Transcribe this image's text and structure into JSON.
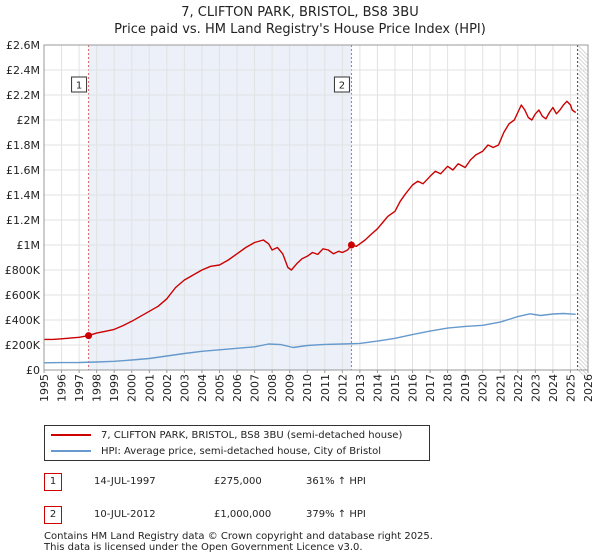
{
  "chart_data": {
    "type": "line",
    "title": "7, CLIFTON PARK, BRISTOL, BS8 3BU",
    "subtitle": "Price paid vs. HM Land Registry's House Price Index (HPI)",
    "xlabel": "",
    "ylabel": "",
    "xlim": [
      1995,
      2026
    ],
    "ylim": [
      0,
      2600000
    ],
    "x_ticks": [
      "1995",
      "1996",
      "1997",
      "1998",
      "1999",
      "2000",
      "2001",
      "2002",
      "2003",
      "2004",
      "2005",
      "2006",
      "2007",
      "2008",
      "2009",
      "2010",
      "2011",
      "2012",
      "2013",
      "2014",
      "2015",
      "2016",
      "2017",
      "2018",
      "2019",
      "2020",
      "2021",
      "2022",
      "2023",
      "2024",
      "2025",
      "2026"
    ],
    "y_ticks": [
      {
        "value": 0,
        "label": "£0"
      },
      {
        "value": 200000,
        "label": "£200K"
      },
      {
        "value": 400000,
        "label": "£400K"
      },
      {
        "value": 600000,
        "label": "£600K"
      },
      {
        "value": 800000,
        "label": "£800K"
      },
      {
        "value": 1000000,
        "label": "£1M"
      },
      {
        "value": 1200000,
        "label": "£1.2M"
      },
      {
        "value": 1400000,
        "label": "£1.4M"
      },
      {
        "value": 1600000,
        "label": "£1.6M"
      },
      {
        "value": 1800000,
        "label": "£1.8M"
      },
      {
        "value": 2000000,
        "label": "£2M"
      },
      {
        "value": 2200000,
        "label": "£2.2M"
      },
      {
        "value": 2400000,
        "label": "£2.4M"
      },
      {
        "value": 2600000,
        "label": "£2.6M"
      }
    ],
    "grid": true,
    "colors": {
      "property": "#cc0000",
      "hpi": "#6699cc",
      "sale_band": "#dde6f5",
      "sale_line": "#cc0000"
    },
    "series": [
      {
        "name": "7, CLIFTON PARK, BRISTOL, BS8 3BU (semi-detached house)",
        "x": [
          1995.0,
          1995.5,
          1996.0,
          1996.5,
          1997.0,
          1997.54,
          1998.0,
          1998.5,
          1999.0,
          1999.5,
          2000.0,
          2000.5,
          2001.0,
          2001.5,
          2002.0,
          2002.5,
          2003.0,
          2003.5,
          2004.0,
          2004.5,
          2005.0,
          2005.5,
          2006.0,
          2006.5,
          2007.0,
          2007.5,
          2007.8,
          2008.0,
          2008.3,
          2008.6,
          2008.9,
          2009.1,
          2009.4,
          2009.7,
          2010.0,
          2010.3,
          2010.6,
          2010.9,
          2011.2,
          2011.5,
          2011.8,
          2012.0,
          2012.3,
          2012.52,
          2012.8,
          2013.0,
          2013.3,
          2013.6,
          2014.0,
          2014.3,
          2014.6,
          2015.0,
          2015.3,
          2015.6,
          2016.0,
          2016.3,
          2016.6,
          2017.0,
          2017.3,
          2017.6,
          2018.0,
          2018.3,
          2018.6,
          2019.0,
          2019.3,
          2019.6,
          2020.0,
          2020.3,
          2020.6,
          2020.9,
          2021.2,
          2021.5,
          2021.8,
          2022.0,
          2022.2,
          2022.4,
          2022.6,
          2022.8,
          2023.0,
          2023.2,
          2023.4,
          2023.6,
          2023.8,
          2024.0,
          2024.2,
          2024.4,
          2024.6,
          2024.8,
          2025.0,
          2025.1,
          2025.3
        ],
        "values": [
          245000,
          245000,
          250000,
          255000,
          262000,
          275000,
          295000,
          310000,
          325000,
          355000,
          390000,
          430000,
          470000,
          510000,
          570000,
          660000,
          720000,
          760000,
          800000,
          830000,
          840000,
          880000,
          930000,
          980000,
          1020000,
          1040000,
          1010000,
          960000,
          980000,
          930000,
          820000,
          800000,
          850000,
          890000,
          910000,
          940000,
          925000,
          970000,
          960000,
          930000,
          950000,
          940000,
          960000,
          1000000,
          990000,
          1010000,
          1040000,
          1080000,
          1130000,
          1180000,
          1230000,
          1270000,
          1350000,
          1410000,
          1480000,
          1510000,
          1490000,
          1550000,
          1590000,
          1570000,
          1630000,
          1600000,
          1650000,
          1620000,
          1680000,
          1720000,
          1750000,
          1800000,
          1780000,
          1800000,
          1900000,
          1970000,
          2000000,
          2060000,
          2120000,
          2080000,
          2020000,
          2000000,
          2050000,
          2080000,
          2030000,
          2010000,
          2060000,
          2100000,
          2050000,
          2080000,
          2120000,
          2150000,
          2120000,
          2080000,
          2060000
        ]
      },
      {
        "name": "HPI: Average price, semi-detached house, City of Bristol",
        "x": [
          1995.0,
          1996.0,
          1997.0,
          1998.0,
          1999.0,
          2000.0,
          2001.0,
          2002.0,
          2003.0,
          2004.0,
          2005.0,
          2006.0,
          2007.0,
          2007.8,
          2008.5,
          2009.2,
          2010.0,
          2011.0,
          2012.0,
          2013.0,
          2014.0,
          2015.0,
          2016.0,
          2017.0,
          2018.0,
          2019.0,
          2020.0,
          2021.0,
          2022.0,
          2022.7,
          2023.3,
          2024.0,
          2024.6,
          2025.3
        ],
        "values": [
          58000,
          59000,
          60000,
          64000,
          70000,
          80000,
          92000,
          112000,
          132000,
          150000,
          162000,
          174000,
          186000,
          208000,
          203000,
          180000,
          196000,
          205000,
          208000,
          213000,
          231000,
          254000,
          283000,
          311000,
          335000,
          349000,
          358000,
          383000,
          427000,
          450000,
          436000,
          448000,
          452000,
          446000
        ]
      }
    ],
    "sales": [
      {
        "id": "1",
        "x": 1997.54,
        "value": 275000,
        "date": "14-JUL-1997",
        "price": "£275,000",
        "hpi": "361% ↑ HPI"
      },
      {
        "id": "2",
        "x": 2012.52,
        "value": 1000000,
        "date": "10-JUL-2012",
        "price": "£1,000,000",
        "hpi": "379% ↑ HPI"
      }
    ],
    "legend_position": "bottom",
    "end_marker_x": 2025.4
  },
  "footer": {
    "line1": "Contains HM Land Registry data © Crown copyright and database right 2025.",
    "line2": "This data is licensed under the Open Government Licence v3.0."
  }
}
